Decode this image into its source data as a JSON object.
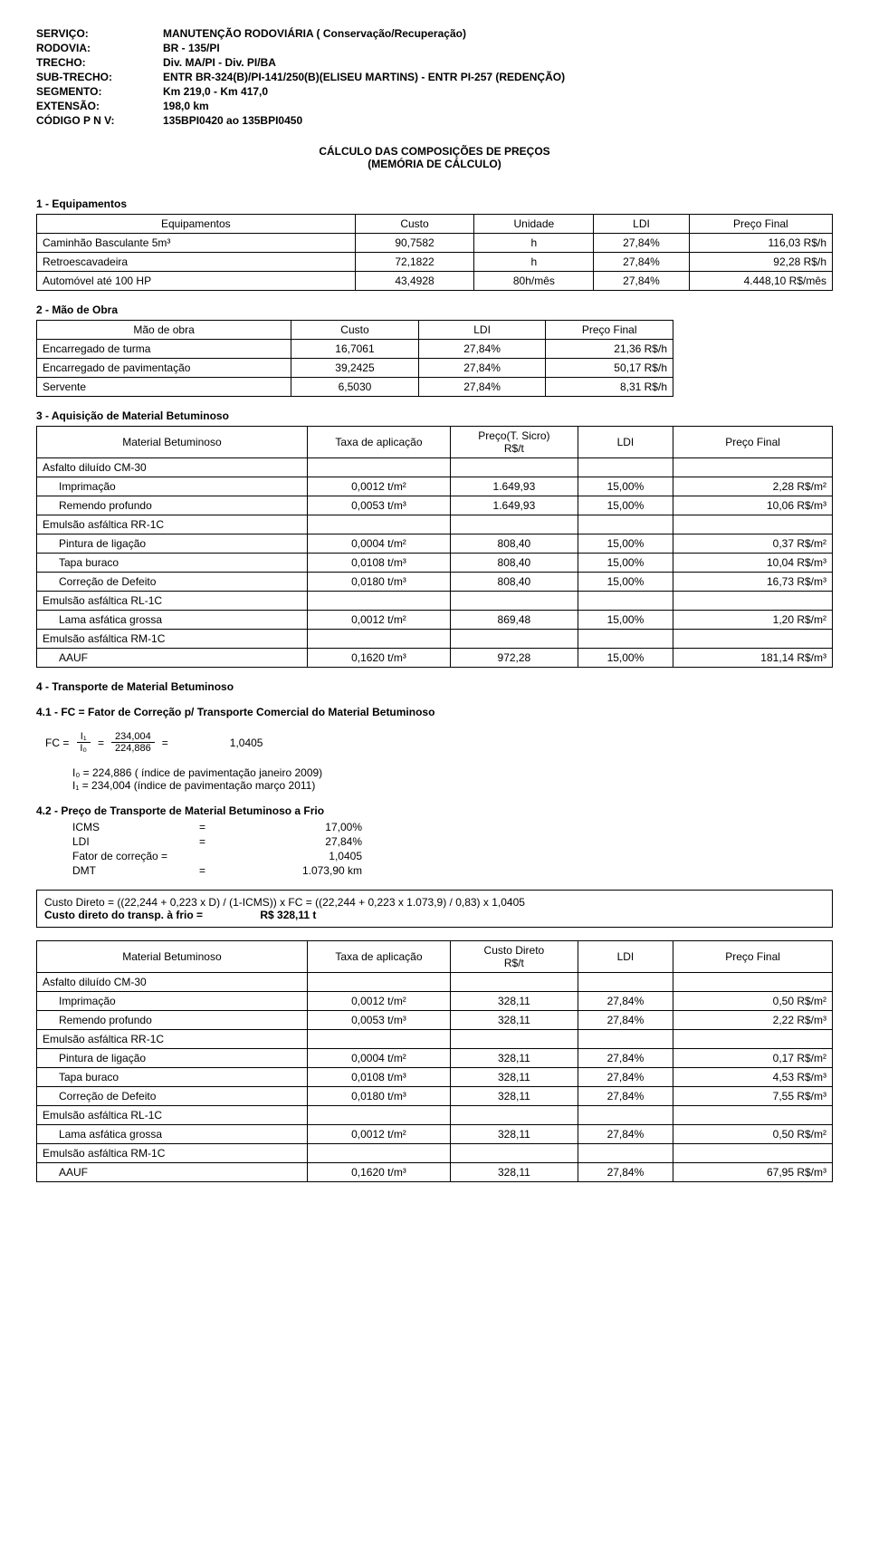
{
  "header": {
    "servico_label": "SERVIÇO:",
    "servico": "MANUTENÇÃO RODOVIÁRIA ( Conservação/Recuperação)",
    "rodovia_label": "RODOVIA:",
    "rodovia": "BR - 135/PI",
    "trecho_label": "TRECHO:",
    "trecho": "Div. MA/PI - Div. PI/BA",
    "subtrecho_label": "SUB-TRECHO:",
    "subtrecho": "ENTR BR-324(B)/PI-141/250(B)(ELISEU MARTINS) - ENTR PI-257 (REDENÇÃO)",
    "segmento_label": "SEGMENTO:",
    "segmento": "Km 219,0 - Km 417,0",
    "extensao_label": "EXTENSÃO:",
    "extensao": "198,0 km",
    "codigo_label": "CÓDIGO P N V:",
    "codigo": "135BPI0420 ao 135BPI0450"
  },
  "title1": "CÁLCULO DAS COMPOSIÇÕES DE PREÇOS",
  "title2": "(MEMÓRIA DE CÁLCULO)",
  "sec1": {
    "title": "1 - Equipamentos",
    "cols": [
      "Equipamentos",
      "Custo",
      "Unidade",
      "LDI",
      "Preço Final"
    ],
    "rows": [
      [
        "Caminhão Basculante 5m³",
        "90,7582",
        "h",
        "27,84%",
        "116,03 R$/h"
      ],
      [
        "Retroescavadeira",
        "72,1822",
        "h",
        "27,84%",
        "92,28 R$/h"
      ],
      [
        "Automóvel até 100 HP",
        "43,4928",
        "80h/mês",
        "27,84%",
        "4.448,10 R$/mês"
      ]
    ]
  },
  "sec2": {
    "title": "2 - Mão de Obra",
    "cols": [
      "Mão de obra",
      "Custo",
      "LDI",
      "Preço Final"
    ],
    "rows": [
      [
        "Encarregado de turma",
        "16,7061",
        "27,84%",
        "21,36 R$/h"
      ],
      [
        "Encarregado de pavimentação",
        "39,2425",
        "27,84%",
        "50,17 R$/h"
      ],
      [
        "Servente",
        "6,5030",
        "27,84%",
        "8,31 R$/h"
      ]
    ]
  },
  "sec3": {
    "title": "3 - Aquisição de Material Betuminoso",
    "cols": [
      "Material Betuminoso",
      "Taxa de aplicação",
      "Preço(T. Sicro) R$/t",
      "LDI",
      "Preço Final"
    ],
    "col3a": "Preço(T. Sicro)",
    "col3b": "R$/t",
    "rows": [
      {
        "group": "Asfalto diluído CM-30"
      },
      {
        "indent": true,
        "cells": [
          "Imprimação",
          "0,0012 t/m²",
          "1.649,93",
          "15,00%",
          "2,28 R$/m²"
        ]
      },
      {
        "indent": true,
        "cells": [
          "Remendo profundo",
          "0,0053 t/m³",
          "1.649,93",
          "15,00%",
          "10,06 R$/m³"
        ]
      },
      {
        "group": "Emulsão asfáltica RR-1C"
      },
      {
        "indent": true,
        "cells": [
          "Pintura de ligação",
          "0,0004 t/m²",
          "808,40",
          "15,00%",
          "0,37 R$/m²"
        ]
      },
      {
        "indent": true,
        "cells": [
          "Tapa buraco",
          "0,0108 t/m³",
          "808,40",
          "15,00%",
          "10,04 R$/m³"
        ]
      },
      {
        "indent": true,
        "cells": [
          "Correção de Defeito",
          "0,0180 t/m³",
          "808,40",
          "15,00%",
          "16,73 R$/m³"
        ]
      },
      {
        "group": "Emulsão asfáltica RL-1C"
      },
      {
        "indent": true,
        "cells": [
          "Lama asfática grossa",
          "0,0012 t/m²",
          "869,48",
          "15,00%",
          "1,20 R$/m²"
        ]
      },
      {
        "group": "Emulsão asfáltica RM-1C"
      },
      {
        "indent": true,
        "cells": [
          "AAUF",
          "0,1620 t/m³",
          "972,28",
          "15,00%",
          "181,14 R$/m³"
        ]
      }
    ]
  },
  "sec4": {
    "title": "4 - Transporte de Material Betuminoso",
    "sub1": "4.1 - FC = Fator de Correção p/ Transporte Comercial do Material Betuminoso",
    "fc_label": "FC =",
    "i1": "I₁",
    "i0": "I₀",
    "num": "234,004",
    "den": "224,886",
    "eq": "=",
    "fc_val": "1,0405",
    "note1": "I₀ = 224,886 ( índice de pavimentação janeiro 2009)",
    "note2": "I₁ = 234,004 (índice de pavimentação março 2011)",
    "sub2": "4.2 - Preço de Transporte de Material Betuminoso a Frio",
    "params": [
      [
        "ICMS",
        "=",
        "17,00%"
      ],
      [
        "LDI",
        "=",
        "27,84%"
      ],
      [
        "Fator de correção =",
        "",
        "1,0405"
      ],
      [
        "DMT",
        "=",
        "1.073,90 km"
      ]
    ],
    "box_line1": "Custo Direto  = ((22,244 + 0,223 x D) / (1-ICMS)) x FC = ((22,244 + 0,223 x 1.073,9) / 0,83) x 1,0405",
    "box_line2_label": "Custo direto do transp. à frio =",
    "box_line2_val": "R$   328,11  t"
  },
  "sec5": {
    "cols": [
      "Material Betuminoso",
      "Taxa de aplicação",
      "Custo Direto R$/t",
      "LDI",
      "Preço Final"
    ],
    "col3a": "Custo Direto",
    "col3b": "R$/t",
    "rows": [
      {
        "group": "Asfalto diluído CM-30"
      },
      {
        "indent": true,
        "cells": [
          "Imprimação",
          "0,0012 t/m²",
          "328,11",
          "27,84%",
          "0,50 R$/m²"
        ]
      },
      {
        "indent": true,
        "cells": [
          "Remendo profundo",
          "0,0053 t/m³",
          "328,11",
          "27,84%",
          "2,22 R$/m³"
        ]
      },
      {
        "group": "Emulsão asfáltica RR-1C"
      },
      {
        "indent": true,
        "cells": [
          "Pintura de ligação",
          "0,0004 t/m²",
          "328,11",
          "27,84%",
          "0,17 R$/m²"
        ]
      },
      {
        "indent": true,
        "cells": [
          "Tapa buraco",
          "0,0108 t/m³",
          "328,11",
          "27,84%",
          "4,53 R$/m³"
        ]
      },
      {
        "indent": true,
        "cells": [
          "Correção de Defeito",
          "0,0180 t/m³",
          "328,11",
          "27,84%",
          "7,55 R$/m³"
        ]
      },
      {
        "group": "Emulsão asfáltica RL-1C"
      },
      {
        "indent": true,
        "cells": [
          "Lama asfática grossa",
          "0,0012 t/m²",
          "328,11",
          "27,84%",
          "0,50 R$/m²"
        ]
      },
      {
        "group": "Emulsão asfáltica RM-1C"
      },
      {
        "indent": true,
        "cells": [
          "AAUF",
          "0,1620 t/m³",
          "328,11",
          "27,84%",
          "67,95 R$/m³"
        ]
      }
    ]
  },
  "layout": {
    "t1_widths": [
      "40%",
      "15%",
      "15%",
      "12%",
      "18%"
    ],
    "t2_widths": [
      "40%",
      "20%",
      "20%",
      "20%"
    ],
    "t3_widths": [
      "34%",
      "18%",
      "16%",
      "12%",
      "20%"
    ]
  }
}
